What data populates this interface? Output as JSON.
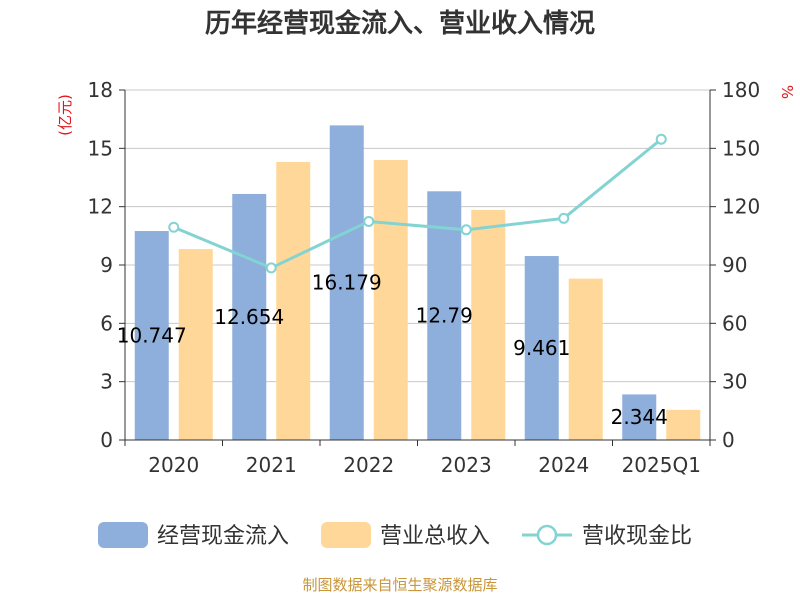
{
  "chart_data": {
    "type": "bar",
    "title": "历年经营现金流入、营业收入情况",
    "categories": [
      "2020",
      "2021",
      "2022",
      "2023",
      "2024",
      "2025Q1"
    ],
    "y_left": {
      "unit": "(亿元)",
      "ylim": [
        0,
        18
      ],
      "ticks": [
        0,
        3,
        6,
        9,
        12,
        15,
        18
      ]
    },
    "y_right": {
      "unit": "%",
      "ylim": [
        0,
        180
      ],
      "ticks": [
        0,
        30,
        60,
        90,
        120,
        150,
        180
      ]
    },
    "series": [
      {
        "name": "经营现金流入",
        "kind": "bar",
        "axis": "left",
        "color": "#8eaedb",
        "values": [
          10.747,
          12.654,
          16.179,
          12.79,
          9.461,
          2.344
        ],
        "labels": [
          "10.747",
          "12.654",
          "16.179",
          "12.79",
          "9.461",
          "2.344"
        ]
      },
      {
        "name": "营业总收入",
        "kind": "bar",
        "axis": "left",
        "color": "#ffd899",
        "values": [
          9.82,
          14.3,
          14.4,
          11.83,
          8.3,
          1.55
        ]
      },
      {
        "name": "营收现金比",
        "kind": "line",
        "axis": "right",
        "color": "#84d3d3",
        "values": [
          109.4,
          88.5,
          112.4,
          108.1,
          114.0,
          154.7
        ]
      }
    ],
    "grid": true,
    "legend": "bottom"
  },
  "source": "制图数据来自恒生聚源数据库"
}
